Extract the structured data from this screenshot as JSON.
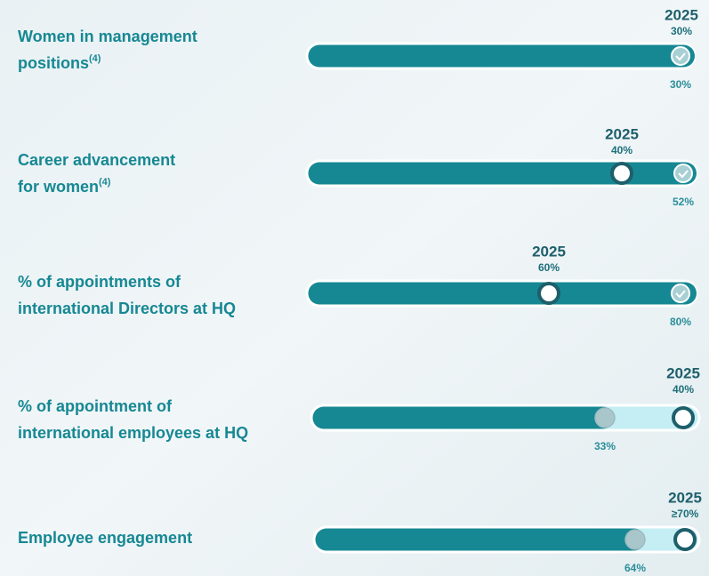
{
  "items": [
    {
      "label_lines": [
        "Women in management",
        "positions"
      ],
      "note": "(4)",
      "target_year": "2025",
      "target": "30%",
      "actual": "30%"
    },
    {
      "label_lines": [
        "Career advancement",
        "for women"
      ],
      "note": "(4)",
      "target_year": "2025",
      "target": "40%",
      "actual": "52%"
    },
    {
      "label_lines": [
        "% of appointments of",
        "international Directors at HQ"
      ],
      "target_year": "2025",
      "target": "60%",
      "actual": "80%"
    },
    {
      "label_lines": [
        "% of appointment of",
        "international employees at HQ"
      ],
      "target_year": "2025",
      "target": "40%",
      "actual": "33%"
    },
    {
      "label_lines": [
        "Employee engagement"
      ],
      "target_year": "2025",
      "target": "≥70%",
      "actual": "64%"
    }
  ]
}
